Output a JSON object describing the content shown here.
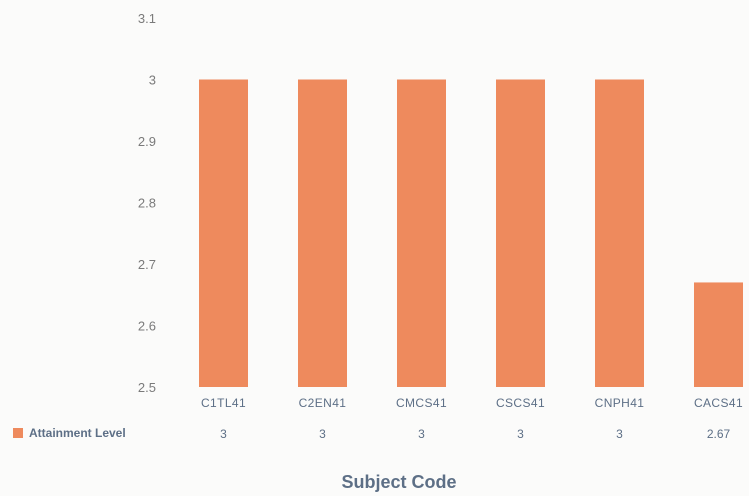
{
  "chart_data": {
    "type": "bar",
    "categories": [
      "C1TL41",
      "C2EN41",
      "CMCS41",
      "CSCS41",
      "CNPH41",
      "CACS41"
    ],
    "series": [
      {
        "name": "Attainment Level",
        "values": [
          3,
          3,
          3,
          3,
          3,
          2.67
        ],
        "display_values": [
          "3",
          "3",
          "3",
          "3",
          "3",
          "2.67"
        ],
        "color": "#ee8a5d"
      }
    ],
    "ylim": [
      2.5,
      3.1
    ],
    "yticks": [
      2.5,
      2.6,
      2.7,
      2.8,
      2.9,
      3,
      3.1
    ],
    "ytick_labels": [
      "2.5",
      "2.6",
      "2.7",
      "2.8",
      "2.9",
      "3",
      "3.1"
    ],
    "xlabel": "Subject Code",
    "ylabel": "",
    "grid": false,
    "legend": "data-table-left",
    "data_table": true
  }
}
